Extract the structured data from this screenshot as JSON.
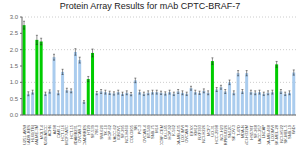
{
  "chart_data": {
    "type": "bar",
    "title": "Protein Array Results for mAb CPTC-BRAF-7",
    "categories": [
      "U251-AKW",
      "NCI-ADR-RES",
      "HL60(TB)",
      "MALME-3M",
      "MOLT-4",
      "A549/ATCC",
      "ACHN",
      "A498",
      "CAKI-1",
      "HCT-116",
      "MCF7/ATC",
      "HCT-15",
      "MDAMB231",
      "OVCAR-3",
      "NCIADRRES",
      "HT29",
      "SF-539",
      "786-0",
      "SW-620",
      "TK-10",
      "HOP-62",
      "UACC-62",
      "IGROV1",
      "SF-295",
      "NCI-H460",
      "COLO205",
      "SR",
      "PC-3",
      "OVCAR-4",
      "BT-549",
      "SNB-75",
      "M14",
      "CCRF-CEM",
      "DU-145",
      "HOP-92",
      "K-562",
      "MDA-MB-435",
      "LOX IMVI",
      "OVCAR-8",
      "EKVX",
      "KM12",
      "RXF393",
      "NCI-H226",
      "MCF7",
      "UO-31",
      "HCC-2998",
      "NCI-H23",
      "RPMI-8226",
      "SN12C",
      "SK-OV-3",
      "T-47D",
      "MDA-N",
      "NCI-H322M",
      "HS578T",
      "SF-268",
      "UACC-257",
      "LNCAP",
      "MDA-MB-468",
      "LOXIMVI",
      "SK-MEL-28",
      "NCI-H522",
      "SK-MEL-5",
      "SNB-19",
      "WiDr"
    ],
    "values": [
      2.75,
      0.65,
      0.7,
      2.3,
      2.25,
      0.65,
      0.72,
      1.77,
      0.68,
      1.32,
      0.76,
      0.74,
      1.93,
      1.68,
      0.4,
      1.1,
      1.9,
      0.67,
      0.72,
      0.7,
      0.68,
      0.66,
      0.7,
      0.65,
      0.68,
      0.64,
      1.06,
      0.7,
      0.65,
      0.68,
      0.7,
      0.7,
      0.68,
      0.66,
      0.7,
      0.65,
      0.72,
      0.68,
      0.65,
      0.82,
      0.7,
      0.68,
      0.74,
      0.68,
      1.65,
      0.78,
      0.85,
      0.72,
      1.0,
      0.68,
      1.28,
      0.72,
      1.28,
      0.7,
      0.68,
      0.7,
      0.65,
      0.68,
      0.7,
      1.55,
      0.72,
      0.65,
      0.68,
      1.3
    ],
    "errors": [
      0.12,
      0.06,
      0.06,
      0.14,
      0.1,
      0.05,
      0.05,
      0.09,
      0.06,
      0.08,
      0.06,
      0.06,
      0.1,
      0.09,
      0.04,
      0.08,
      0.12,
      0.05,
      0.06,
      0.06,
      0.05,
      0.05,
      0.06,
      0.05,
      0.06,
      0.05,
      0.07,
      0.06,
      0.05,
      0.06,
      0.06,
      0.06,
      0.05,
      0.05,
      0.06,
      0.05,
      0.06,
      0.06,
      0.05,
      0.06,
      0.06,
      0.05,
      0.06,
      0.06,
      0.1,
      0.06,
      0.06,
      0.06,
      0.07,
      0.06,
      0.08,
      0.06,
      0.08,
      0.06,
      0.06,
      0.06,
      0.05,
      0.06,
      0.06,
      0.09,
      0.06,
      0.05,
      0.06,
      0.08
    ],
    "colors": [
      "#00cc00",
      "#aaccee",
      "#aaccee",
      "#00cc00",
      "#00cc00",
      "#aaccee",
      "#aaccee",
      "#aaccee",
      "#aaccee",
      "#aaccee",
      "#aaccee",
      "#aaccee",
      "#aaccee",
      "#aaccee",
      "#aaccee",
      "#00cc00",
      "#00cc00",
      "#aaccee",
      "#aaccee",
      "#aaccee",
      "#aaccee",
      "#aaccee",
      "#aaccee",
      "#aaccee",
      "#aaccee",
      "#aaccee",
      "#aaccee",
      "#aaccee",
      "#aaccee",
      "#aaccee",
      "#aaccee",
      "#aaccee",
      "#aaccee",
      "#aaccee",
      "#aaccee",
      "#aaccee",
      "#aaccee",
      "#aaccee",
      "#aaccee",
      "#aaccee",
      "#aaccee",
      "#aaccee",
      "#aaccee",
      "#aaccee",
      "#00cc00",
      "#aaccee",
      "#aaccee",
      "#aaccee",
      "#aaccee",
      "#aaccee",
      "#aaccee",
      "#aaccee",
      "#aaccee",
      "#aaccee",
      "#aaccee",
      "#aaccee",
      "#aaccee",
      "#aaccee",
      "#aaccee",
      "#00cc00",
      "#aaccee",
      "#aaccee",
      "#aaccee",
      "#aaccee"
    ],
    "ylim": [
      0.0,
      3.0
    ],
    "yticks": [
      {
        "value": 0,
        "label": "0.0"
      },
      0.5,
      {
        "value": 1,
        "label": "1.0"
      },
      1.5,
      {
        "value": 2,
        "label": "2.0"
      },
      2.5,
      {
        "value": 3,
        "label": "3.0"
      }
    ],
    "grid": true
  }
}
